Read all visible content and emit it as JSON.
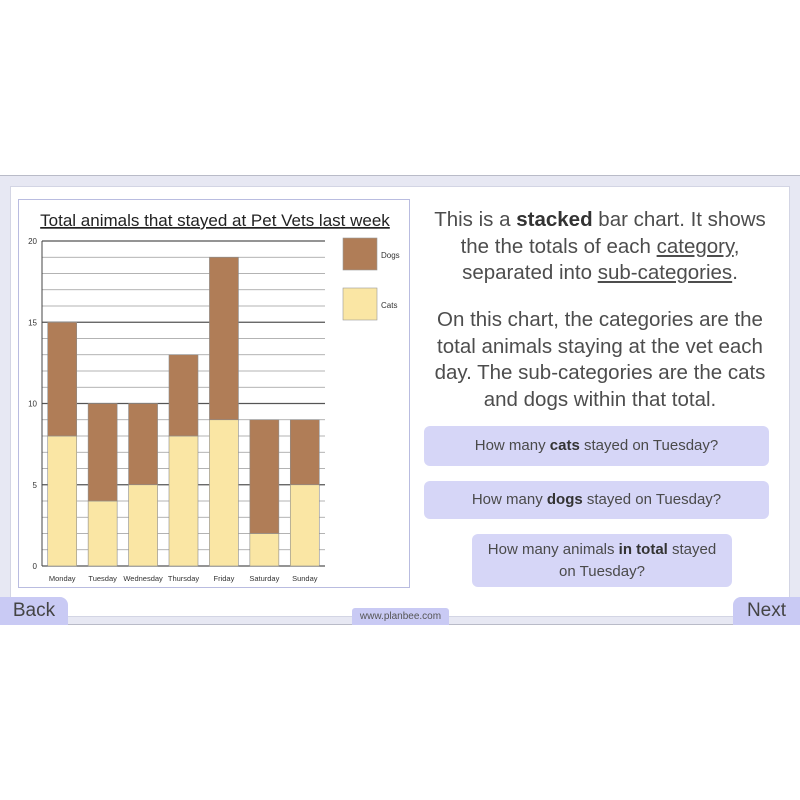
{
  "chart_data": {
    "type": "bar",
    "stacked": true,
    "title": "Total animals that stayed at Pet Vets last week",
    "xlabel": "",
    "ylabel": "",
    "categories": [
      "Monday",
      "Tuesday",
      "Wednesday",
      "Thursday",
      "Friday",
      "Saturday",
      "Sunday"
    ],
    "series": [
      {
        "name": "Cats",
        "values": [
          8,
          4,
          5,
          8,
          9,
          2,
          5
        ],
        "color": "#fae6a4"
      },
      {
        "name": "Dogs",
        "values": [
          7,
          6,
          5,
          5,
          10,
          7,
          4
        ],
        "color": "#b07d57"
      }
    ],
    "ylim": [
      0,
      20
    ],
    "yticks": [
      0,
      5,
      10,
      15,
      20
    ],
    "minor_gridline_step": 1,
    "grid": true,
    "legend": {
      "placement": "right",
      "order": [
        "Dogs",
        "Cats"
      ]
    }
  },
  "text": {
    "para1": [
      "This is a ",
      "stacked",
      " bar chart. It shows the the totals of each ",
      "category",
      ", separated into ",
      "sub-categories",
      "."
    ],
    "para2": "On this chart, the categories are the total animals staying at the vet each day. The sub-categories are the cats and dogs within that total."
  },
  "questions": [
    {
      "pre": "How many ",
      "bold": "cats",
      "post": " stayed on Tuesday?"
    },
    {
      "pre": "How many ",
      "bold": "dogs",
      "post": " stayed on Tuesday?"
    },
    {
      "pre": "How many animals ",
      "bold": "in total",
      "post": " stayed on Tuesday?"
    }
  ],
  "nav": {
    "back": "Back",
    "next": "Next",
    "site": "www.planbee.com"
  }
}
